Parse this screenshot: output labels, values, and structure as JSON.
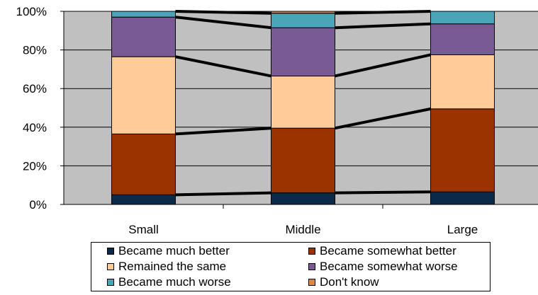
{
  "chart_data": {
    "type": "bar",
    "stacked": true,
    "percent": true,
    "categories": [
      "Small",
      "Middle",
      "Large"
    ],
    "y_ticks": [
      "0%",
      "20%",
      "40%",
      "60%",
      "80%",
      "100%"
    ],
    "ylim": [
      0,
      100
    ],
    "grid": true,
    "legend_position": "bottom",
    "series": [
      {
        "name": "Became much better",
        "color": "#0b2a4a",
        "values": [
          5,
          6,
          6.5
        ]
      },
      {
        "name": "Became somewhat better",
        "color": "#9a3300",
        "values": [
          31.5,
          33.5,
          43
        ]
      },
      {
        "name": "Remained the same",
        "color": "#ffcc99",
        "values": [
          40,
          27,
          28
        ]
      },
      {
        "name": "Became somewhat worse",
        "color": "#7a5a95",
        "values": [
          20.5,
          25,
          16
        ]
      },
      {
        "name": "Became much worse",
        "color": "#4aa5b8",
        "values": [
          3,
          7.5,
          6.5
        ]
      },
      {
        "name": "Don't know",
        "color": "#d98848",
        "values": [
          0,
          1,
          0
        ]
      }
    ],
    "plot_background": "#c0c0c0"
  }
}
